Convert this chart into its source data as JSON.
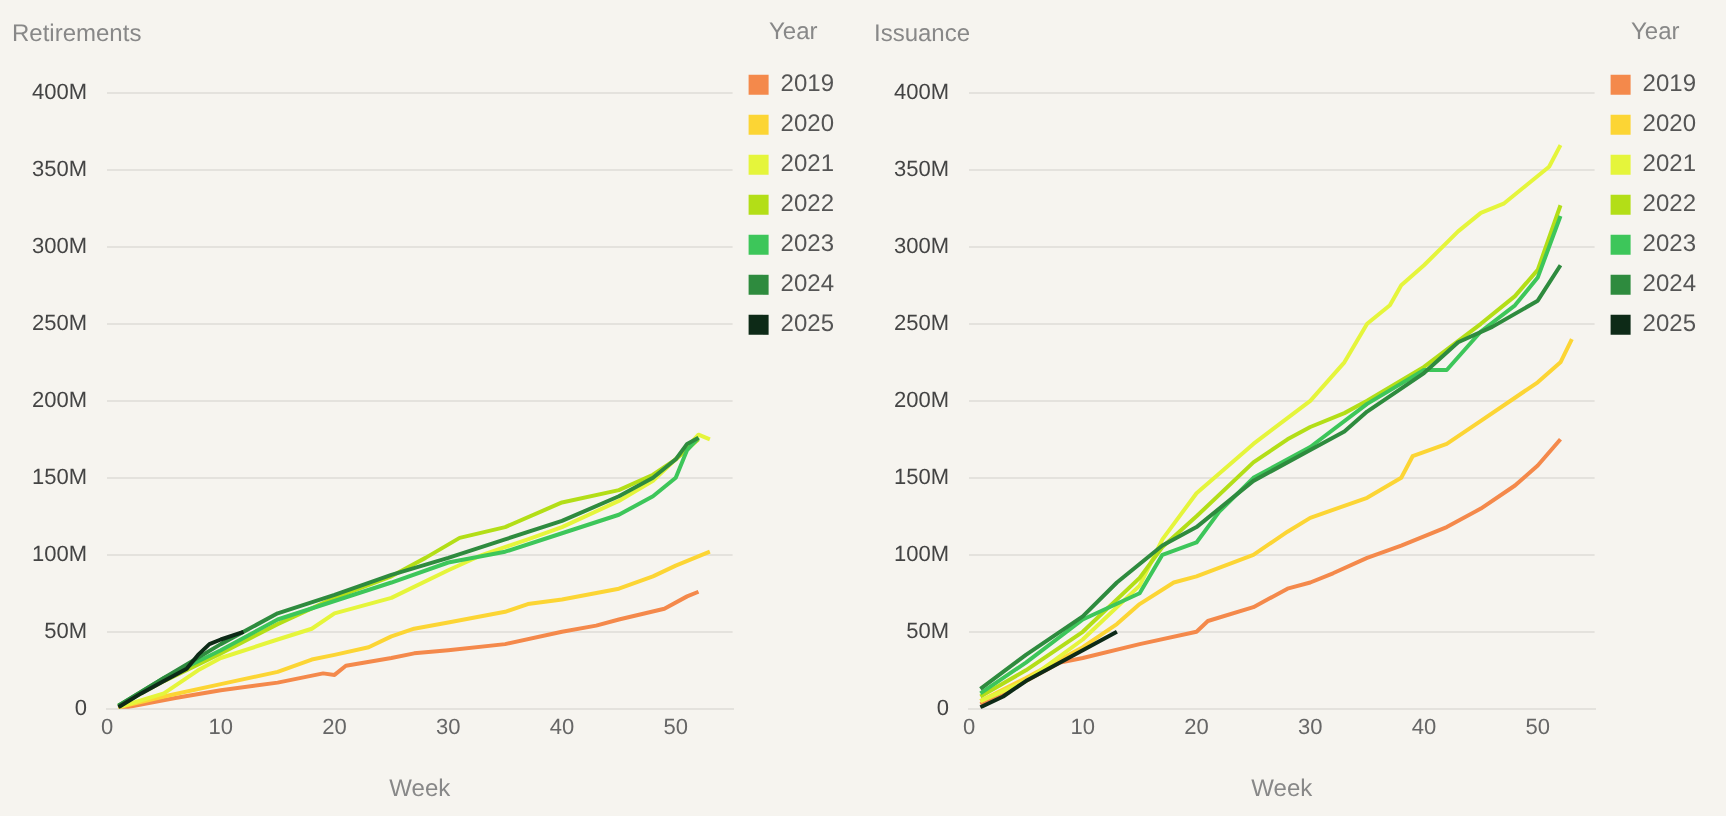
{
  "chart_data": [
    {
      "type": "line",
      "title": "Retirements",
      "xlabel": "Week",
      "legend_title": "Year",
      "legend": "top right",
      "grid": "y",
      "marker": "none",
      "line_style": "solid",
      "xlim": [
        0,
        55
      ],
      "xticks": [
        0,
        10,
        20,
        30,
        40,
        50
      ],
      "ylim": [
        0,
        400
      ],
      "yticks": [
        0,
        {
          "value": 50,
          "label": "50M"
        },
        {
          "value": 100,
          "label": "100M"
        },
        {
          "value": 150,
          "label": "150M"
        },
        {
          "value": 200,
          "label": "200M"
        },
        {
          "value": 250,
          "label": "250M"
        },
        {
          "value": 300,
          "label": "300M"
        },
        {
          "value": 350,
          "label": "350M"
        },
        {
          "value": 400,
          "label": "400M"
        }
      ],
      "series": [
        {
          "name": "2019",
          "color": "#f4894b",
          "x": [
            1,
            6,
            10,
            15,
            19,
            20,
            21,
            25,
            27,
            30,
            35,
            40,
            43,
            45,
            49,
            51,
            52
          ],
          "values": [
            0,
            7,
            12,
            17,
            23,
            22,
            28,
            33,
            36,
            38,
            42,
            50,
            54,
            58,
            65,
            73,
            76
          ]
        },
        {
          "name": "2020",
          "color": "#fcd534",
          "x": [
            1,
            5,
            10,
            15,
            18,
            20,
            23,
            25,
            27,
            30,
            35,
            37,
            40,
            45,
            48,
            50,
            53
          ],
          "values": [
            1,
            8,
            16,
            24,
            32,
            35,
            40,
            47,
            52,
            56,
            63,
            68,
            71,
            78,
            86,
            93,
            102
          ]
        },
        {
          "name": "2021",
          "color": "#e5f53b",
          "x": [
            1,
            5,
            8,
            10,
            15,
            18,
            20,
            25,
            30,
            33,
            37,
            40,
            45,
            48,
            50,
            52,
            53
          ],
          "values": [
            1,
            10,
            25,
            33,
            45,
            52,
            62,
            72,
            90,
            100,
            110,
            118,
            135,
            148,
            162,
            178,
            175
          ]
        },
        {
          "name": "2022",
          "color": "#b3de17",
          "x": [
            1,
            5,
            10,
            15,
            20,
            25,
            28,
            31,
            35,
            40,
            45,
            48,
            50,
            52
          ],
          "values": [
            2,
            18,
            36,
            55,
            72,
            86,
            98,
            111,
            118,
            134,
            142,
            152,
            162,
            175
          ]
        },
        {
          "name": "2023",
          "color": "#3dc65a",
          "x": [
            1,
            5,
            10,
            15,
            20,
            25,
            30,
            35,
            40,
            45,
            48,
            50,
            51,
            52
          ],
          "values": [
            2,
            20,
            38,
            58,
            70,
            82,
            95,
            102,
            114,
            126,
            138,
            150,
            168,
            176
          ]
        },
        {
          "name": "2024",
          "color": "#2e8b3e",
          "x": [
            1,
            5,
            10,
            15,
            20,
            25,
            30,
            35,
            40,
            45,
            48,
            50,
            51,
            52
          ],
          "values": [
            2,
            20,
            42,
            62,
            74,
            87,
            98,
            110,
            122,
            138,
            150,
            162,
            172,
            176
          ]
        },
        {
          "name": "2025",
          "color": "#0d2a17",
          "x": [
            1,
            3,
            5,
            7,
            8,
            9,
            10,
            12
          ],
          "values": [
            1,
            10,
            18,
            26,
            35,
            42,
            45,
            50
          ]
        }
      ]
    },
    {
      "type": "line",
      "title": "Issuance",
      "xlabel": "Week",
      "legend_title": "Year",
      "legend": "top right",
      "grid": "y",
      "marker": "none",
      "line_style": "solid",
      "xlim": [
        0,
        55
      ],
      "xticks": [
        0,
        10,
        20,
        30,
        40,
        50
      ],
      "ylim": [
        0,
        400
      ],
      "yticks": [
        0,
        {
          "value": 50,
          "label": "50M"
        },
        {
          "value": 100,
          "label": "100M"
        },
        {
          "value": 150,
          "label": "150M"
        },
        {
          "value": 200,
          "label": "200M"
        },
        {
          "value": 250,
          "label": "250M"
        },
        {
          "value": 300,
          "label": "300M"
        },
        {
          "value": 350,
          "label": "350M"
        },
        {
          "value": 400,
          "label": "400M"
        }
      ],
      "series": [
        {
          "name": "2019",
          "color": "#f4894b",
          "x": [
            1,
            5,
            8,
            10,
            15,
            20,
            21,
            25,
            28,
            30,
            32,
            35,
            38,
            40,
            42,
            45,
            48,
            50,
            52
          ],
          "values": [
            3,
            18,
            30,
            33,
            42,
            50,
            57,
            66,
            78,
            82,
            88,
            98,
            106,
            112,
            118,
            130,
            145,
            158,
            175
          ]
        },
        {
          "name": "2020",
          "color": "#fcd534",
          "x": [
            1,
            5,
            10,
            13,
            15,
            18,
            20,
            25,
            28,
            30,
            35,
            38,
            39,
            42,
            45,
            48,
            50,
            52,
            53
          ],
          "values": [
            5,
            20,
            40,
            55,
            68,
            82,
            86,
            100,
            115,
            124,
            137,
            150,
            164,
            172,
            187,
            202,
            212,
            225,
            240
          ]
        },
        {
          "name": "2021",
          "color": "#e5f53b",
          "x": [
            1,
            5,
            10,
            15,
            17,
            20,
            25,
            30,
            33,
            35,
            37,
            38,
            40,
            43,
            45,
            47,
            49,
            51,
            52
          ],
          "values": [
            5,
            18,
            45,
            80,
            110,
            140,
            172,
            200,
            225,
            250,
            262,
            275,
            288,
            310,
            322,
            328,
            340,
            352,
            366
          ]
        },
        {
          "name": "2022",
          "color": "#b3de17",
          "x": [
            1,
            5,
            10,
            15,
            17,
            20,
            25,
            28,
            30,
            33,
            35,
            40,
            45,
            48,
            50,
            52
          ],
          "values": [
            8,
            25,
            50,
            85,
            105,
            125,
            160,
            175,
            183,
            192,
            200,
            222,
            250,
            268,
            285,
            327
          ]
        },
        {
          "name": "2023",
          "color": "#3dc65a",
          "x": [
            1,
            5,
            10,
            15,
            17,
            20,
            22,
            25,
            30,
            35,
            40,
            42,
            45,
            48,
            50,
            52
          ],
          "values": [
            10,
            30,
            58,
            75,
            100,
            108,
            128,
            150,
            170,
            198,
            220,
            220,
            245,
            262,
            280,
            320
          ]
        },
        {
          "name": "2024",
          "color": "#2e8b3e",
          "x": [
            1,
            5,
            10,
            13,
            17,
            20,
            25,
            30,
            33,
            35,
            40,
            43,
            46,
            50,
            52
          ],
          "values": [
            13,
            35,
            60,
            82,
            106,
            118,
            148,
            168,
            180,
            193,
            218,
            238,
            248,
            265,
            288
          ]
        },
        {
          "name": "2025",
          "color": "#0d2a17",
          "x": [
            1,
            3,
            5,
            8,
            10,
            13
          ],
          "values": [
            1,
            8,
            18,
            30,
            38,
            50
          ]
        }
      ]
    }
  ]
}
